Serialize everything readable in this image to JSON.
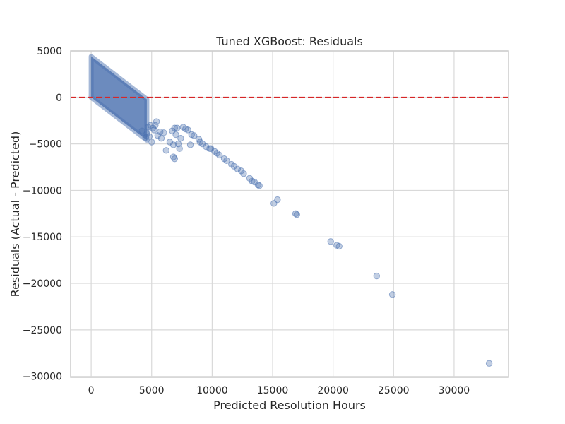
{
  "chart_data": {
    "type": "scatter",
    "title": "Tuned XGBoost: Residuals",
    "xlabel": "Predicted Resolution Hours",
    "ylabel": "Residuals (Actual - Predicted)",
    "xlim": [
      -1700,
      34500
    ],
    "ylim": [
      -30100,
      5000
    ],
    "xticks": [
      0,
      5000,
      10000,
      15000,
      20000,
      25000,
      30000
    ],
    "yticks": [
      5000,
      0,
      -5000,
      -10000,
      -15000,
      -20000,
      -25000,
      -30000
    ],
    "xtick_labels": [
      "0",
      "5000",
      "10000",
      "15000",
      "20000",
      "25000",
      "30000"
    ],
    "ytick_labels": [
      "5000",
      "0",
      "−5000",
      "−10000",
      "−15000",
      "−20000",
      "−25000",
      "−30000"
    ],
    "grid": true,
    "reference_line": {
      "y": 0,
      "style": "dashed",
      "color": "#d62728"
    },
    "point_color": "#4c72b0",
    "point_alpha": 0.35,
    "dense_band": {
      "x_range": [
        0,
        4600
      ],
      "top_intercept": 4400,
      "bottom_intercept": 0,
      "note_values": "residual = actual - predicted; actual between 0 and about 4400"
    },
    "series": [
      {
        "values": [
          [
            4600,
            -3900
          ],
          [
            4800,
            -4200
          ],
          [
            5000,
            -4800
          ],
          [
            4500,
            -4300
          ],
          [
            4200,
            -3600
          ],
          [
            5200,
            -3500
          ],
          [
            5500,
            -4100
          ],
          [
            5700,
            -3700
          ],
          [
            6000,
            -3800
          ],
          [
            6200,
            -5700
          ],
          [
            5100,
            -3300
          ],
          [
            5300,
            -3000
          ],
          [
            5400,
            -2600
          ],
          [
            4700,
            -3200
          ],
          [
            4900,
            -3000
          ],
          [
            5800,
            -4400
          ],
          [
            6500,
            -4800
          ],
          [
            6700,
            -3600
          ],
          [
            6800,
            -5100
          ],
          [
            6900,
            -3300
          ],
          [
            7000,
            -4000
          ],
          [
            7100,
            -3300
          ],
          [
            7200,
            -5000
          ],
          [
            7300,
            -5500
          ],
          [
            6800,
            -6400
          ],
          [
            6900,
            -6600
          ],
          [
            7400,
            -4400
          ],
          [
            7600,
            -3200
          ],
          [
            7800,
            -3400
          ],
          [
            8000,
            -3500
          ],
          [
            8200,
            -5100
          ],
          [
            8300,
            -4000
          ],
          [
            8500,
            -4100
          ],
          [
            8900,
            -4500
          ],
          [
            9000,
            -4800
          ],
          [
            9200,
            -5000
          ],
          [
            9500,
            -5300
          ],
          [
            9800,
            -5500
          ],
          [
            9900,
            -5500
          ],
          [
            10200,
            -5800
          ],
          [
            10400,
            -6000
          ],
          [
            10600,
            -6200
          ],
          [
            11000,
            -6600
          ],
          [
            11200,
            -6800
          ],
          [
            11600,
            -7200
          ],
          [
            11800,
            -7400
          ],
          [
            12100,
            -7700
          ],
          [
            12400,
            -7900
          ],
          [
            12600,
            -8200
          ],
          [
            13100,
            -8700
          ],
          [
            13300,
            -9000
          ],
          [
            13500,
            -9100
          ],
          [
            13800,
            -9400
          ],
          [
            13900,
            -9500
          ],
          [
            15100,
            -11400
          ],
          [
            15400,
            -11000
          ],
          [
            16900,
            -12500
          ],
          [
            17000,
            -12600
          ],
          [
            19800,
            -15500
          ],
          [
            20300,
            -15900
          ],
          [
            20500,
            -16000
          ],
          [
            23600,
            -19200
          ],
          [
            24900,
            -21200
          ],
          [
            32900,
            -28600
          ]
        ]
      }
    ]
  }
}
